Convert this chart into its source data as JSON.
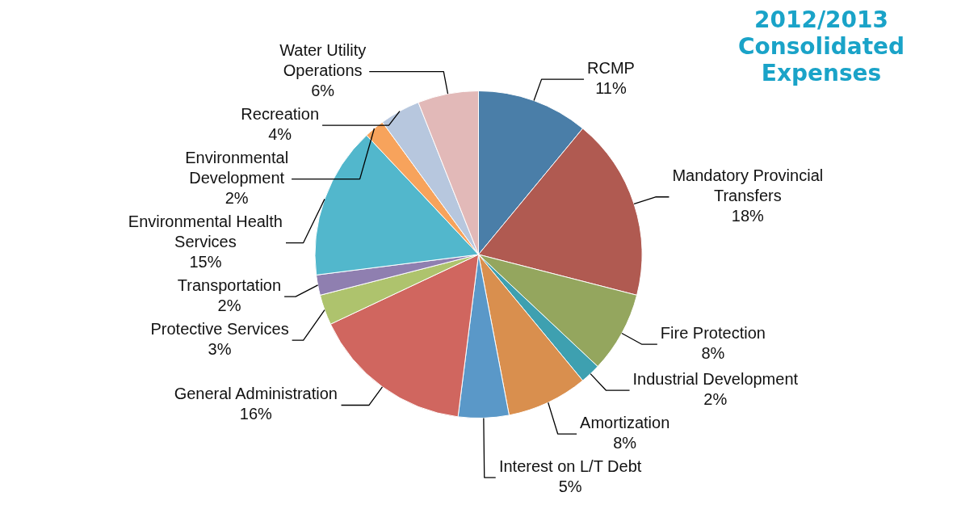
{
  "chart_data": {
    "type": "pie",
    "title": "2012/2013 Consolidated Expenses",
    "categories": [
      "RCMP",
      "Mandatory Provincial Transfers",
      "Fire Protection",
      "Industrial Development",
      "Amortization",
      "Interest on L/T Debt",
      "General Administration",
      "Protective Services",
      "Transportation",
      "Environmental Health Services",
      "Environmental Development",
      "Recreation",
      "Water Utility Operations"
    ],
    "values": [
      11,
      18,
      8,
      2,
      8,
      5,
      16,
      3,
      2,
      15,
      2,
      4,
      6
    ],
    "value_labels": [
      "11%",
      "18%",
      "8%",
      "2%",
      "8%",
      "5%",
      "16%",
      "3%",
      "2%",
      "15%",
      "2%",
      "4%",
      "6%"
    ],
    "colors": [
      "#4a7ea8",
      "#b05a51",
      "#94a65e",
      "#3ea0b0",
      "#d98f4e",
      "#5a98c8",
      "#d0665f",
      "#aec36d",
      "#8f7fb0",
      "#52b7cc",
      "#f7a35c",
      "#b7c7de",
      "#e2b9b8"
    ],
    "legend": false
  }
}
